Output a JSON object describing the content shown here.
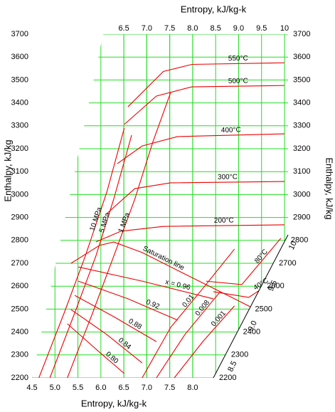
{
  "chart_data": {
    "type": "line",
    "title_top": "Entropy, kJ/kg-k",
    "xlabel": "Entropy, kJ/kg-k",
    "ylabel": "Enthalpy, kJ/kg",
    "y2label": "Enthalpy, kJ/kg",
    "xlim": [
      4.5,
      10
    ],
    "ylim": [
      2200,
      3700
    ],
    "y2lim": [
      2200,
      3700
    ],
    "grid": true,
    "grid_color": "#22dd22",
    "color": "#ee0000",
    "xticks": [
      4.5,
      {
        "value": 5,
        "label": "5.0"
      },
      5.5,
      {
        "value": 6,
        "label": "6.0"
      },
      6.5,
      {
        "value": 7,
        "label": "7.0"
      },
      7.5,
      {
        "value": 8,
        "label": "8.0"
      }
    ],
    "x2ticks": [
      6.5,
      {
        "value": 7,
        "label": "7.0"
      },
      7.5,
      {
        "value": 8,
        "label": "8.0"
      },
      8.5,
      {
        "value": 9,
        "label": "9.0"
      },
      9.5,
      10
    ],
    "x3ticks": [
      10,
      9.5,
      {
        "value": 9,
        "label": "9.0"
      },
      8.5
    ],
    "yticks": [
      2200,
      2300,
      2400,
      2500,
      2600,
      2700,
      2800,
      2900,
      3000,
      3100,
      3200,
      3300,
      3400,
      3500,
      3600,
      3700
    ],
    "y2ticks": [
      2200,
      2300,
      2400,
      2500,
      2600,
      2700,
      2800,
      2900,
      3000,
      3100,
      3200,
      3300,
      3400,
      3500,
      3600,
      3700
    ],
    "series": [
      {
        "name": "550°C",
        "x": [
          6.59,
          7.36,
          7.98,
          10
        ],
        "values": [
          3383,
          3537,
          3568,
          3575
        ]
      },
      {
        "name": "500°C",
        "x": [
          6.51,
          7.21,
          7.98,
          10
        ],
        "values": [
          3306,
          3430,
          3470,
          3476
        ]
      },
      {
        "name": "400°C",
        "x": [
          6.36,
          6.9,
          7.67,
          10
        ],
        "values": [
          3135,
          3212,
          3253,
          3265
        ]
      },
      {
        "name": "300°C",
        "x": [
          6.13,
          6.74,
          7.52,
          10
        ],
        "values": [
          2917,
          3026,
          3051,
          3057
        ]
      },
      {
        "name": "200°C",
        "x": [
          5.89,
          6.44,
          7.36,
          10
        ],
        "values": [
          2793,
          2840,
          2861,
          2868
        ]
      },
      {
        "name": "80°C",
        "x": [
          8.29,
          9.07,
          9.92
        ],
        "values": [
          2622,
          2607,
          2809
        ]
      },
      {
        "name": "40°C",
        "x": [
          8.45,
          9.22,
          9.76
        ],
        "values": [
          2576,
          2551,
          2622
        ]
      },
      {
        "name": "Saturation line",
        "x": [
          5.35,
          5.97,
          6.28,
          6.9,
          7.83,
          8.91,
          9.99
        ],
        "values": [
          2700,
          2778,
          2793,
          2747,
          2653,
          2545,
          2436
        ]
      },
      {
        "name": "10 MPa",
        "x": [
          4.65,
          5.2,
          5.66,
          6.13,
          6.51
        ],
        "values": [
          2200,
          2483,
          2731,
          3011,
          3290
        ]
      },
      {
        "name": "5 MPa",
        "x": [
          4.89,
          5.43,
          5.89,
          6.28,
          6.67
        ],
        "values": [
          2200,
          2483,
          2731,
          2980,
          3259
        ]
      },
      {
        "name": "1 MPa",
        "x": [
          5.27,
          5.82,
          6.28,
          6.74,
          7.13,
          7.52
        ],
        "values": [
          2200,
          2483,
          2731,
          2980,
          3228,
          3445
        ]
      },
      {
        "name": "0.01",
        "x": [
          6.9,
          7.52,
          8.29,
          8.91
        ],
        "values": [
          2200,
          2420,
          2607,
          2762
        ]
      },
      {
        "name": "0.008",
        "x": [
          7.21,
          7.83,
          8.6
        ],
        "values": [
          2200,
          2389,
          2576
        ]
      },
      {
        "name": "0.001",
        "x": [
          7.6,
          8.22,
          8.91
        ],
        "values": [
          2200,
          2358,
          2514
        ]
      },
      {
        "name": "x = 0.96",
        "x": [
          5.51,
          6.9,
          8.45
        ],
        "values": [
          2684,
          2622,
          2545
        ]
      },
      {
        "name": "0.92",
        "x": [
          5.51,
          6.59,
          7.67
        ],
        "values": [
          2622,
          2545,
          2452
        ]
      },
      {
        "name": "0.88",
        "x": [
          5.43,
          6.28,
          7.21
        ],
        "values": [
          2560,
          2467,
          2358
        ]
      },
      {
        "name": "0.84",
        "x": [
          5.35,
          6.13,
          6.9
        ],
        "values": [
          2498,
          2389,
          2265
        ]
      },
      {
        "name": "0.80",
        "x": [
          5.27,
          5.97,
          6.51
        ],
        "values": [
          2436,
          2312,
          2219
        ]
      }
    ]
  }
}
